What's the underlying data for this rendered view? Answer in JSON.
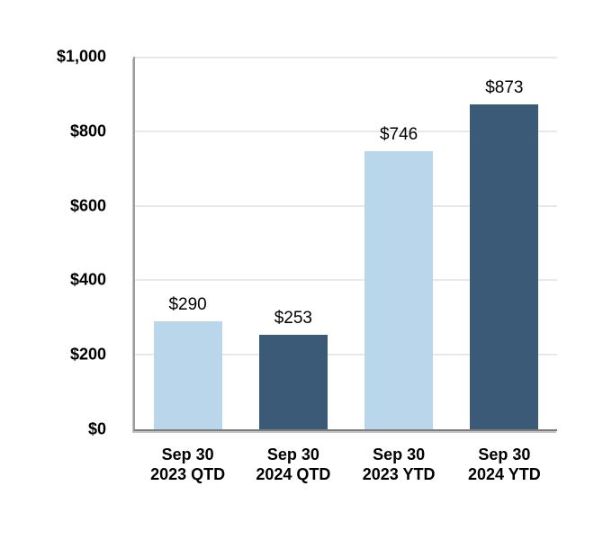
{
  "chart_data": {
    "type": "bar",
    "title": "",
    "categories": [
      "Sep 30\n2023 QTD",
      "Sep 30\n2024 QTD",
      "Sep 30\n2023 YTD",
      "Sep 30\n2024 YTD"
    ],
    "values": [
      290,
      253,
      746,
      873
    ],
    "data_labels": [
      "$290",
      "$253",
      "$746",
      "$873"
    ],
    "bar_colors": [
      "#bad6ea",
      "#3b5a78",
      "#bad6ea",
      "#3b5a78"
    ],
    "ylim": [
      0,
      1000
    ],
    "yticks": [
      {
        "value": 0,
        "label": "$0"
      },
      {
        "value": 200,
        "label": "$200"
      },
      {
        "value": 400,
        "label": "$400"
      },
      {
        "value": 600,
        "label": "$600"
      },
      {
        "value": 800,
        "label": "$800"
      },
      {
        "value": 1000,
        "label": "$1,000"
      }
    ],
    "grid": true,
    "legend": "none",
    "colors": {
      "series_light": "#bad6ea",
      "series_dark": "#3b5a78",
      "gridline": "#e8e8e8",
      "y_axis_line": "#9d9d9d",
      "x_axis_line": "#7d7d7d",
      "text": "#000000",
      "background": "#ffffff"
    }
  }
}
